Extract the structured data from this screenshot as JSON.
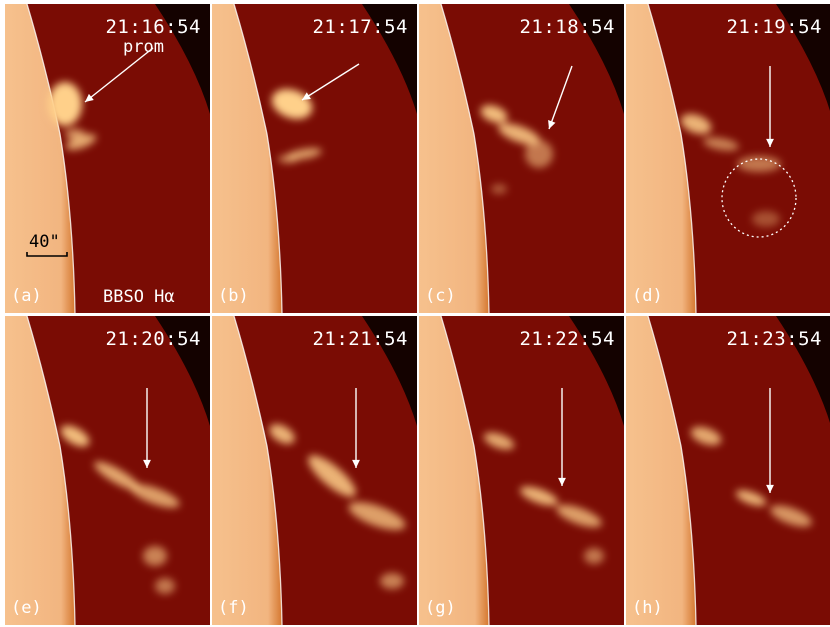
{
  "panels": [
    {
      "time": "21:16:54",
      "label": "(a)"
    },
    {
      "time": "21:17:54",
      "label": "(b)"
    },
    {
      "time": "21:18:54",
      "label": "(c)"
    },
    {
      "time": "21:19:54",
      "label": "(d)"
    },
    {
      "time": "21:20:54",
      "label": "(e)"
    },
    {
      "time": "21:21:54",
      "label": "(f)"
    },
    {
      "time": "21:22:54",
      "label": "(g)"
    },
    {
      "time": "21:23:54",
      "label": "(h)"
    }
  ],
  "annotations": {
    "prom_label": "prom",
    "scale_label": "40\"",
    "instrument_label": "BBSO Hα"
  },
  "colors": {
    "background": "#7a0c04",
    "disk": "#f2b580",
    "limb": "#d5772f",
    "prominence": "#ffd08a",
    "annotation": "#ffffff"
  }
}
